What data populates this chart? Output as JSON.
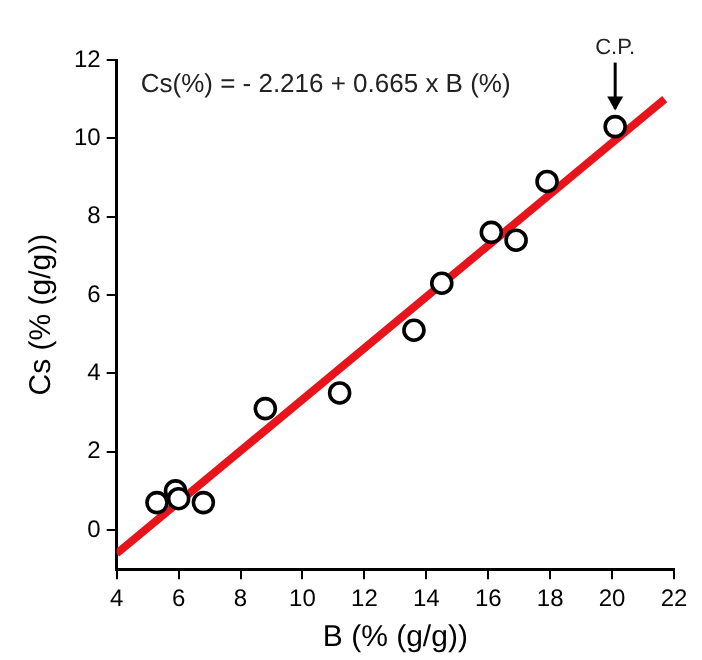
{
  "chart_data": {
    "type": "scatter",
    "xlabel": "B (% (g/g))",
    "ylabel": "Cs (% (g/g))",
    "xlim": [
      4,
      22
    ],
    "xticks": [
      4,
      6,
      8,
      10,
      12,
      14,
      16,
      18,
      20,
      22
    ],
    "ylim": [
      -1,
      12
    ],
    "yticks": [
      0,
      2,
      4,
      6,
      8,
      10,
      12
    ],
    "grid": false,
    "legend": false,
    "marker": "circle",
    "annotations": [
      "Cs(%) = - 2.216 + 0.665 x B (%)",
      {
        "text": "C.P.",
        "x": 20.1,
        "y": 10.3
      }
    ],
    "series": [
      {
        "color": "#000000",
        "x": [
          5.3,
          5.9,
          6.0,
          6.8,
          8.8,
          11.2,
          13.6,
          14.5,
          16.1,
          16.9,
          17.9,
          20.1
        ],
        "values": [
          0.7,
          1.0,
          0.8,
          0.7,
          3.1,
          3.5,
          5.1,
          6.3,
          7.6,
          7.4,
          8.9,
          10.3
        ]
      },
      {
        "type": "line",
        "marker": "none",
        "color": "#e8141c",
        "x": [
          4,
          21.7
        ],
        "values": [
          -0.6,
          11.0
        ]
      }
    ]
  }
}
